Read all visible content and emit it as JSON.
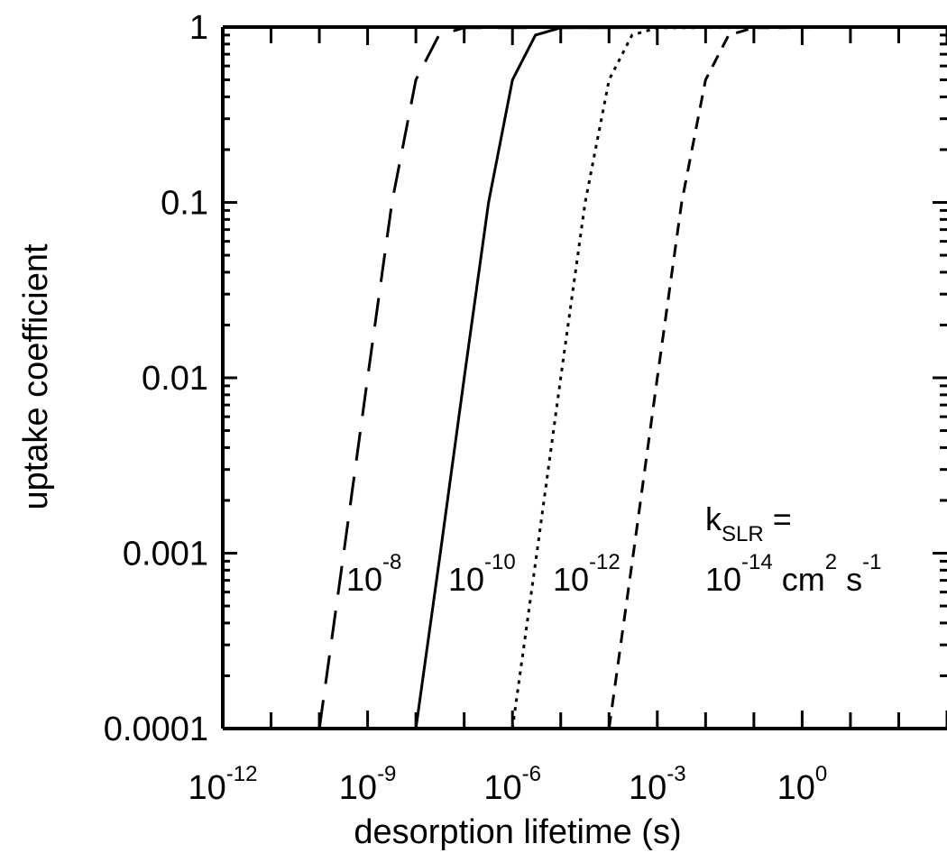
{
  "chart_data": {
    "type": "line",
    "title": "",
    "xlabel": "desorption lifetime (s)",
    "ylabel": "uptake coefficient",
    "x_scale": "log",
    "y_scale": "log",
    "xlim": [
      1e-12,
      1000.0
    ],
    "ylim": [
      0.0001,
      1
    ],
    "x_ticks": [
      {
        "base": "10",
        "exp": "-12"
      },
      {
        "base": "10",
        "exp": "-9"
      },
      {
        "base": "10",
        "exp": "-6"
      },
      {
        "base": "10",
        "exp": "-3"
      },
      {
        "base": "10",
        "exp": "0"
      }
    ],
    "y_ticks": [
      "1",
      "0.1",
      "0.01",
      "0.001",
      "0.0001"
    ],
    "grid": false,
    "legend": "none",
    "annotation": {
      "k": "k",
      "sub": "SLR",
      "eq": " ="
    },
    "series": [
      {
        "label_base": "10",
        "label_exp": "-8",
        "dash": "long-dash",
        "points": [
          [
            1e-10,
            0.0001
          ],
          [
            3.2e-10,
            0.001
          ],
          [
            1e-09,
            0.01
          ],
          [
            3.2e-09,
            0.1
          ],
          [
            1e-08,
            0.5
          ],
          [
            3e-08,
            0.9
          ],
          [
            1e-07,
            0.99
          ],
          [
            1000.0,
            1.0
          ]
        ]
      },
      {
        "label_base": "10",
        "label_exp": "-10",
        "dash": "solid",
        "points": [
          [
            1e-08,
            0.0001
          ],
          [
            3.2e-08,
            0.001
          ],
          [
            1e-07,
            0.01
          ],
          [
            3.2e-07,
            0.1
          ],
          [
            1e-06,
            0.5
          ],
          [
            3e-06,
            0.9
          ],
          [
            1e-05,
            0.99
          ],
          [
            1000.0,
            1.0
          ]
        ]
      },
      {
        "label_base": "10",
        "label_exp": "-12",
        "dash": "dotted",
        "points": [
          [
            1e-06,
            0.0001
          ],
          [
            3.2e-06,
            0.001
          ],
          [
            1e-05,
            0.01
          ],
          [
            3.2e-05,
            0.1
          ],
          [
            0.0001,
            0.5
          ],
          [
            0.0003,
            0.9
          ],
          [
            0.001,
            0.99
          ],
          [
            1000.0,
            1.0
          ]
        ]
      },
      {
        "label_base": "10",
        "label_exp": "-14",
        "dash": "short-dash",
        "unit_base": " cm",
        "unit_exp1": "2",
        "unit_mid": " s",
        "unit_exp2": "-1",
        "points": [
          [
            0.0001,
            0.0001
          ],
          [
            0.00032,
            0.001
          ],
          [
            0.001,
            0.01
          ],
          [
            0.0032,
            0.1
          ],
          [
            0.01,
            0.5
          ],
          [
            0.03,
            0.9
          ],
          [
            0.1,
            0.99
          ],
          [
            1000.0,
            1.0
          ]
        ]
      }
    ]
  }
}
